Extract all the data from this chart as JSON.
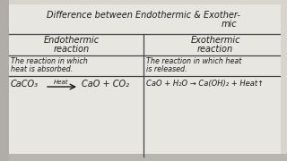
{
  "bg_color": "#d8d5cf",
  "whiteboard_color": "#e8e6e0",
  "text_color": "#1a1a1a",
  "line_color": "#444444",
  "title_line1": "Difference between Endothermic & Exother-",
  "title_line2": "mic",
  "col1_header1": "Endothermic",
  "col1_header2": "reaction",
  "col2_header1": "Exothermic",
  "col2_header2": "reaction",
  "col1_def1": "The reaction in which",
  "col1_def2": "heat is absorbed.",
  "col2_def1": "The reaction in which heat",
  "col2_def2": "is released.",
  "col1_caco3": "CaCO₃",
  "col1_heat": "Heat",
  "col1_product": "CaO + CO₂",
  "col2_eq": "CaO + H₂O → Ca(OH)₂ + Heat↑"
}
